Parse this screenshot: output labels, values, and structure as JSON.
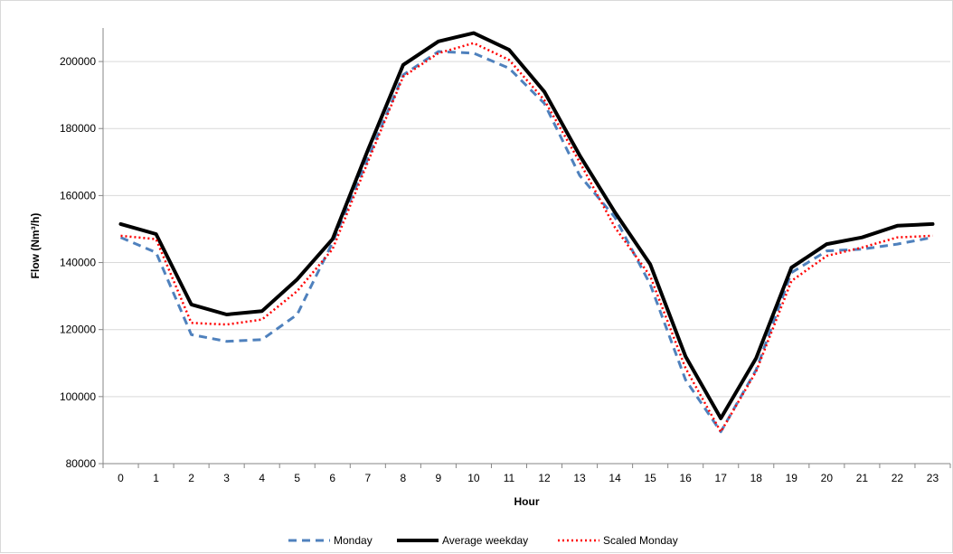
{
  "chart_data": {
    "type": "line",
    "title": "",
    "xlabel": "Hour",
    "ylabel": "Flow (Nm³/h)",
    "ylim": [
      80000,
      210000
    ],
    "yticks": [
      80000,
      100000,
      120000,
      140000,
      160000,
      180000,
      200000
    ],
    "categories": [
      "0",
      "1",
      "2",
      "3",
      "4",
      "5",
      "6",
      "7",
      "8",
      "9",
      "10",
      "11",
      "12",
      "13",
      "14",
      "15",
      "16",
      "17",
      "18",
      "19",
      "20",
      "21",
      "22",
      "23"
    ],
    "grid": "horizontal",
    "legend_position": "bottom",
    "series": [
      {
        "name": "Monday",
        "style": "dashed",
        "color": "#4f81bd",
        "values": [
          147500,
          143000,
          118500,
          116500,
          117000,
          124500,
          146000,
          171000,
          196000,
          203000,
          202500,
          198000,
          187500,
          166000,
          153500,
          133500,
          105000,
          89500,
          108000,
          137000,
          143500,
          144000,
          145500,
          147500
        ]
      },
      {
        "name": "Average weekday",
        "style": "solid",
        "color": "#000000",
        "values": [
          151500,
          148500,
          127500,
          124500,
          125500,
          135000,
          147000,
          173500,
          199000,
          206000,
          208500,
          203500,
          191000,
          172000,
          155000,
          139500,
          112000,
          93500,
          111500,
          138500,
          145500,
          147500,
          151000,
          151500
        ]
      },
      {
        "name": "Scaled Monday",
        "style": "dotted",
        "color": "#ff0000",
        "values": [
          148000,
          147000,
          122000,
          121500,
          123000,
          131500,
          144000,
          170000,
          195500,
          202500,
          205500,
          200500,
          188500,
          170000,
          150500,
          136000,
          108500,
          89500,
          107500,
          134500,
          142000,
          144500,
          147500,
          148000
        ]
      }
    ]
  }
}
